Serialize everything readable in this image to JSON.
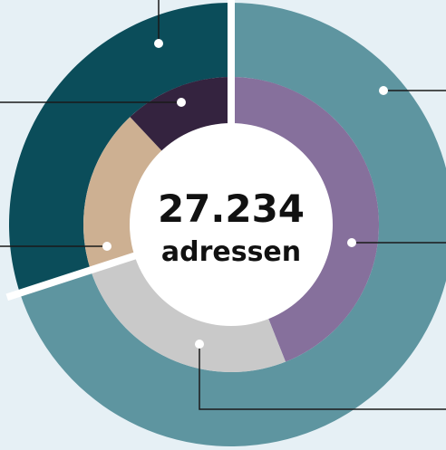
{
  "chart_data": {
    "type": "donut",
    "rings": [
      {
        "values": [
          70,
          30
        ],
        "colors": [
          "#5e95a0",
          "#0b4d5a"
        ]
      },
      {
        "values": [
          44,
          26,
          18,
          12
        ],
        "colors": [
          "#86709c",
          "#c9c9c9",
          "#cdb092",
          "#34233f"
        ]
      }
    ],
    "center_value": "27.234",
    "center_label": "adressen"
  }
}
